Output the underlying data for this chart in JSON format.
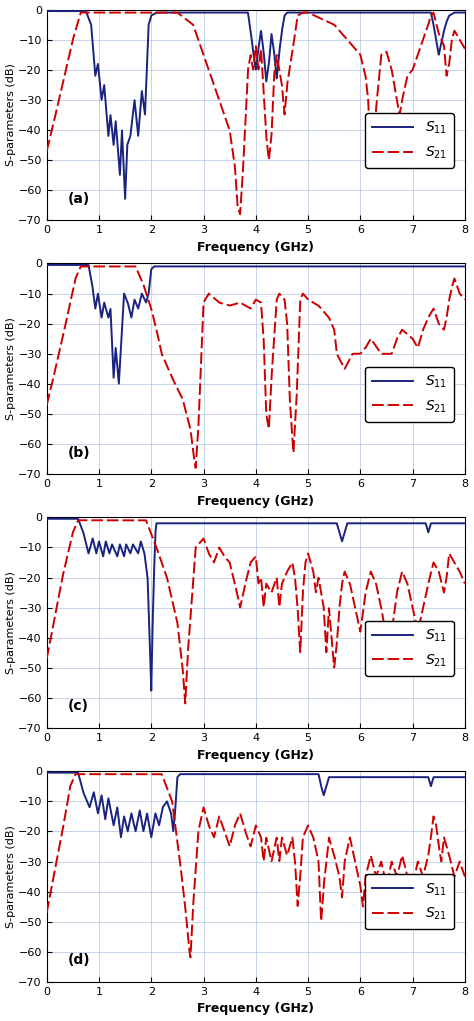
{
  "panels": [
    "(a)",
    "(b)",
    "(c)",
    "(d)"
  ],
  "xlim": [
    0,
    8
  ],
  "ylim": [
    -70,
    0
  ],
  "xlabel": "Frequency (GHz)",
  "ylabel": "S-parameters (dB)",
  "yticks": [
    0,
    -10,
    -20,
    -30,
    -40,
    -50,
    -60,
    -70
  ],
  "xticks": [
    0,
    1,
    2,
    3,
    4,
    5,
    6,
    7,
    8
  ],
  "s11_color": "#1a237e",
  "s21_color": "#cc0000",
  "grid_color": "#b0c4de",
  "lw": 1.4
}
